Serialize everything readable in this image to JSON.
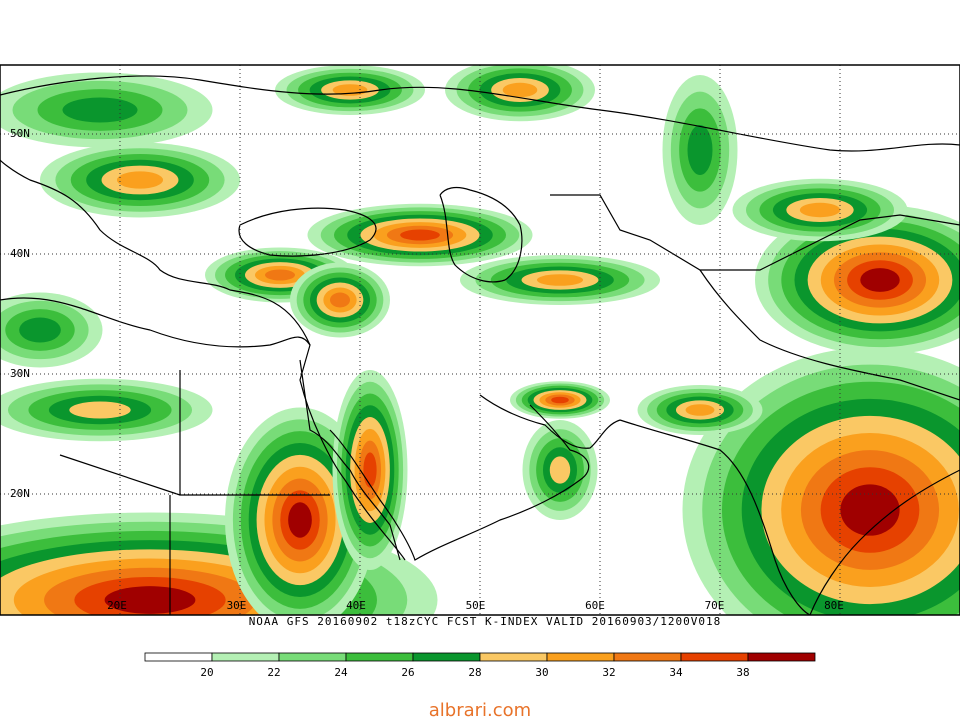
{
  "map": {
    "lat_labels": [
      "50N",
      "40N",
      "30N",
      "20N"
    ],
    "lon_labels": [
      "20E",
      "30E",
      "40E",
      "50E",
      "60E",
      "70E",
      "80E"
    ],
    "caption": "NOAA GFS 20160902 t18zCYC FCST K-INDEX   VALID 20160903/1200V018"
  },
  "colorbar": {
    "colors": [
      "#ffffff",
      "#b4f0b4",
      "#78dc78",
      "#3cbe3c",
      "#0a962d",
      "#fac864",
      "#faa01e",
      "#f07814",
      "#e64100",
      "#a00000"
    ],
    "labels": [
      20,
      22,
      24,
      26,
      28,
      30,
      32,
      34,
      38
    ]
  },
  "watermark": "albrari.com"
}
